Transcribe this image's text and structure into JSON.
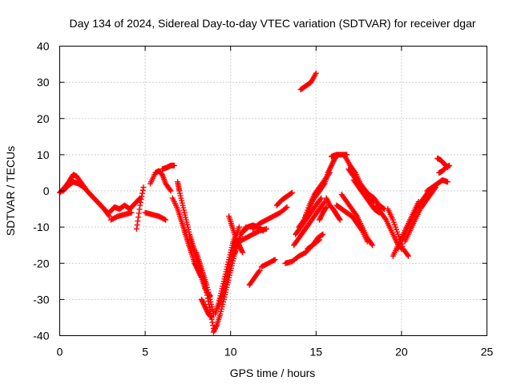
{
  "chart_data": {
    "type": "scatter",
    "title": "Day 134 of 2024, Sidereal Day-to-day VTEC variation (SDTVAR) for receiver dgar",
    "xlabel": "GPS time / hours",
    "ylabel": "SDTVAR / TECUs",
    "xlim": [
      0,
      25
    ],
    "ylim": [
      -40,
      40
    ],
    "xticks": [
      0,
      5,
      10,
      15,
      20,
      25
    ],
    "yticks": [
      -40,
      -30,
      -20,
      -10,
      0,
      10,
      20,
      30,
      40
    ],
    "xtick_labels": [
      "0",
      "5",
      "10",
      "15",
      "20",
      "25"
    ],
    "ytick_labels": [
      "-40",
      "-30",
      "-20",
      "-10",
      "0",
      "10",
      "20",
      "30",
      "40"
    ],
    "grid": true,
    "legend": "none",
    "marker": "+",
    "color": "#ff0000",
    "series": [
      {
        "x": [
          0.0,
          0.3,
          0.6,
          0.8,
          1.0,
          1.3,
          1.7,
          2.1,
          2.5,
          2.8
        ],
        "y": [
          -0.5,
          1.0,
          3.0,
          4.5,
          4.0,
          2.0,
          -0.5,
          -2.5,
          -4.5,
          -6.0
        ]
      },
      {
        "x": [
          0.2,
          0.5,
          0.8,
          1.1,
          1.4,
          1.8,
          2.2,
          2.6,
          2.9
        ],
        "y": [
          0.0,
          1.5,
          2.5,
          2.0,
          1.0,
          -1.0,
          -3.0,
          -5.0,
          -7.0
        ]
      },
      {
        "x": [
          2.9,
          3.2,
          3.5,
          3.8,
          4.1,
          4.4,
          4.7
        ],
        "y": [
          -6.0,
          -4.5,
          -5.0,
          -4.0,
          -5.0,
          -3.5,
          -2.0
        ]
      },
      {
        "x": [
          3.0,
          3.4,
          3.8,
          4.2
        ],
        "y": [
          -8.0,
          -7.0,
          -6.5,
          -6.0
        ]
      },
      {
        "x": [
          4.5,
          4.7,
          4.9
        ],
        "y": [
          -10.5,
          -4.0,
          1.0
        ]
      },
      {
        "x": [
          5.3,
          5.6,
          5.8,
          6.0,
          6.2,
          6.5
        ],
        "y": [
          2.0,
          5.0,
          5.5,
          4.5,
          2.0,
          0.0
        ]
      },
      {
        "x": [
          5.0,
          5.4,
          5.8,
          6.2
        ],
        "y": [
          -6.0,
          -6.5,
          -7.0,
          -8.0
        ]
      },
      {
        "x": [
          6.0,
          6.3,
          6.5,
          6.7
        ],
        "y": [
          6.0,
          6.5,
          7.0,
          7.0
        ]
      },
      {
        "x": [
          6.6,
          6.9,
          7.1,
          7.3,
          7.5,
          7.7
        ],
        "y": [
          -2.0,
          -5.0,
          -8.0,
          -11.0,
          -14.0,
          -17.0
        ]
      },
      {
        "x": [
          6.9,
          7.0,
          7.2,
          7.4,
          7.6,
          7.8,
          8.0,
          8.2,
          8.4,
          8.6,
          8.8,
          9.0
        ],
        "y": [
          2.5,
          0.0,
          -4.0,
          -8.0,
          -12.0,
          -15.0,
          -18.0,
          -21.0,
          -24.0,
          -28.0,
          -33.0,
          -38.0
        ]
      },
      {
        "x": [
          7.3,
          7.5,
          7.7,
          7.9,
          8.1,
          8.3,
          8.5
        ],
        "y": [
          -11.0,
          -14.0,
          -17.0,
          -20.0,
          -22.0,
          -24.0,
          -27.0
        ]
      },
      {
        "x": [
          7.6,
          7.8,
          8.0,
          8.2,
          8.4,
          8.6,
          8.8
        ],
        "y": [
          -13.0,
          -16.0,
          -19.0,
          -22.0,
          -25.0,
          -28.0,
          -29.0
        ]
      },
      {
        "x": [
          8.0,
          8.2,
          8.4,
          8.6,
          8.8,
          9.0
        ],
        "y": [
          -17.0,
          -20.0,
          -23.0,
          -26.0,
          -30.0,
          -34.0
        ]
      },
      {
        "x": [
          8.3,
          8.5,
          8.7,
          8.9
        ],
        "y": [
          -30.0,
          -32.0,
          -34.0,
          -35.0
        ]
      },
      {
        "x": [
          9.0,
          9.2,
          9.4,
          9.6,
          9.8,
          10.0,
          10.2,
          10.4,
          10.6,
          10.9
        ],
        "y": [
          -39.0,
          -37.0,
          -34.0,
          -30.0,
          -26.0,
          -22.0,
          -18.0,
          -15.0,
          -12.0,
          -10.0
        ]
      },
      {
        "x": [
          9.1,
          9.3,
          9.5,
          9.7,
          9.9,
          10.1,
          10.3
        ],
        "y": [
          -34.0,
          -31.0,
          -27.0,
          -23.0,
          -19.0,
          -15.0,
          -12.0
        ]
      },
      {
        "x": [
          9.3,
          9.5,
          9.7,
          9.9,
          10.1,
          10.3,
          10.5
        ],
        "y": [
          -32.0,
          -29.0,
          -25.0,
          -21.0,
          -17.0,
          -13.0,
          -10.0
        ]
      },
      {
        "x": [
          9.6,
          9.8,
          10.0,
          10.2,
          10.4
        ],
        "y": [
          -30.0,
          -26.0,
          -22.0,
          -18.0,
          -14.0
        ]
      },
      {
        "x": [
          9.9,
          10.1,
          10.3,
          10.5,
          10.7
        ],
        "y": [
          -7.0,
          -10.0,
          -13.0,
          -15.0,
          -17.0
        ]
      },
      {
        "x": [
          10.8,
          11.0,
          11.3,
          11.6,
          11.9
        ],
        "y": [
          -11.0,
          -10.0,
          -9.5,
          -10.0,
          -11.0
        ]
      },
      {
        "x": [
          10.5,
          10.9,
          11.3,
          11.7,
          12.1
        ],
        "y": [
          -14.0,
          -13.0,
          -12.0,
          -11.0,
          -10.5
        ]
      },
      {
        "x": [
          11.1,
          11.4,
          11.7
        ],
        "y": [
          -26.0,
          -24.0,
          -22.0
        ]
      },
      {
        "x": [
          11.3,
          11.7,
          12.1,
          12.5,
          12.9,
          13.3
        ],
        "y": [
          -10.5,
          -9.0,
          -8.0,
          -7.0,
          -6.0,
          -4.5
        ]
      },
      {
        "x": [
          11.8,
          12.2,
          12.6
        ],
        "y": [
          -21.0,
          -20.0,
          -19.0
        ]
      },
      {
        "x": [
          12.7,
          13.0,
          13.3,
          13.6
        ],
        "y": [
          -4.0,
          -2.5,
          -1.5,
          -0.5
        ]
      },
      {
        "x": [
          13.2,
          13.6,
          14.0,
          14.4,
          14.8,
          15.2
        ],
        "y": [
          -20.0,
          -19.5,
          -18.0,
          -17.0,
          -15.0,
          -13.5
        ]
      },
      {
        "x": [
          13.7,
          14.0,
          14.3,
          14.6,
          14.9,
          15.2,
          15.5
        ],
        "y": [
          -15.0,
          -13.0,
          -11.0,
          -9.0,
          -7.0,
          -5.0,
          -3.0
        ]
      },
      {
        "x": [
          13.8,
          14.1,
          14.4,
          14.7,
          15.0,
          15.3
        ],
        "y": [
          -12.0,
          -10.0,
          -8.0,
          -6.0,
          -4.0,
          -2.0
        ]
      },
      {
        "x": [
          14.0,
          14.3,
          14.6,
          14.9,
          15.2,
          15.5
        ],
        "y": [
          -10.0,
          -8.0,
          -5.0,
          -2.0,
          0.0,
          2.0
        ]
      },
      {
        "x": [
          14.3,
          14.6,
          14.9,
          15.2,
          15.5,
          15.8
        ],
        "y": [
          -8.0,
          -4.0,
          -1.0,
          1.0,
          3.0,
          5.0
        ]
      },
      {
        "x": [
          14.1,
          14.4,
          14.7,
          15.0
        ],
        "y": [
          28.0,
          29.0,
          30.0,
          32.5
        ]
      },
      {
        "x": [
          14.5,
          14.8,
          15.1,
          15.4
        ],
        "y": [
          -16.0,
          -15.0,
          -13.0,
          -12.0
        ]
      },
      {
        "x": [
          15.2,
          15.4,
          15.6
        ],
        "y": [
          -8.0,
          -6.0,
          -4.5
        ]
      },
      {
        "x": [
          15.5,
          15.7,
          15.9,
          16.1,
          16.3
        ],
        "y": [
          2.0,
          5.0,
          7.0,
          9.0,
          10.0
        ]
      },
      {
        "x": [
          15.9,
          16.2,
          16.5,
          16.8
        ],
        "y": [
          9.5,
          10.0,
          10.0,
          10.0
        ]
      },
      {
        "x": [
          15.6,
          15.8,
          16.0,
          16.2,
          16.4
        ],
        "y": [
          -2.0,
          -4.0,
          -5.0,
          -6.5,
          -8.0
        ]
      },
      {
        "x": [
          16.2,
          16.5,
          16.8,
          17.1,
          17.4,
          17.7,
          18.0
        ],
        "y": [
          -4.0,
          -5.0,
          -6.0,
          -7.0,
          -9.0,
          -11.0,
          -14.0
        ]
      },
      {
        "x": [
          16.5,
          16.8,
          17.1,
          17.4,
          17.7,
          18.0,
          18.3
        ],
        "y": [
          -1.0,
          -3.0,
          -5.0,
          -7.0,
          -10.0,
          -13.0,
          -15.0
        ]
      },
      {
        "x": [
          16.7,
          17.0,
          17.3,
          17.6,
          17.9
        ],
        "y": [
          9.5,
          7.0,
          5.0,
          2.0,
          0.0
        ]
      },
      {
        "x": [
          16.9,
          17.2,
          17.5,
          17.8,
          18.1,
          18.4
        ],
        "y": [
          6.0,
          4.0,
          2.0,
          0.0,
          -2.0,
          -3.0
        ]
      },
      {
        "x": [
          17.2,
          17.5,
          17.8,
          18.1,
          18.4,
          18.7
        ],
        "y": [
          3.0,
          1.0,
          -1.0,
          -3.0,
          -5.0,
          -6.0
        ]
      },
      {
        "x": [
          17.8,
          18.1,
          18.4,
          18.7,
          19.0
        ],
        "y": [
          0.5,
          -1.0,
          -2.0,
          -4.0,
          -5.0
        ]
      },
      {
        "x": [
          18.5,
          18.8,
          19.1,
          19.4,
          19.7,
          20.0
        ],
        "y": [
          -4.0,
          -6.0,
          -8.0,
          -11.0,
          -14.0,
          -16.0
        ]
      },
      {
        "x": [
          19.2,
          19.5,
          19.8,
          20.1,
          20.4
        ],
        "y": [
          -5.0,
          -8.0,
          -12.0,
          -16.0,
          -18.0
        ]
      },
      {
        "x": [
          19.5,
          19.8,
          20.1,
          20.4,
          20.7,
          21.0
        ],
        "y": [
          -18.0,
          -15.0,
          -12.0,
          -9.0,
          -6.0,
          -3.0
        ]
      },
      {
        "x": [
          19.8,
          20.1,
          20.4,
          20.7,
          21.0,
          21.3,
          21.6
        ],
        "y": [
          -16.0,
          -13.0,
          -10.0,
          -7.0,
          -4.0,
          -2.0,
          0.0
        ]
      },
      {
        "x": [
          20.2,
          20.5,
          20.8,
          21.1,
          21.4,
          21.7,
          22.0
        ],
        "y": [
          -14.0,
          -11.0,
          -8.0,
          -5.0,
          -3.0,
          -1.0,
          1.0
        ]
      },
      {
        "x": [
          21.5,
          21.8,
          22.1,
          22.4,
          22.7
        ],
        "y": [
          0.0,
          1.0,
          2.0,
          3.0,
          2.5
        ]
      },
      {
        "x": [
          22.1,
          22.3,
          22.5,
          22.7
        ],
        "y": [
          9.0,
          8.5,
          7.5,
          6.5
        ]
      },
      {
        "x": [
          22.2,
          22.4,
          22.6,
          22.8
        ],
        "y": [
          5.0,
          5.5,
          6.5,
          7.0
        ]
      }
    ]
  }
}
